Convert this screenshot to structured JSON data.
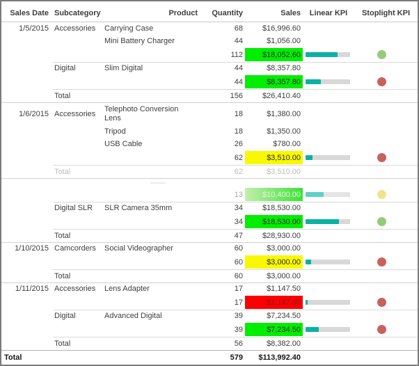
{
  "columns": [
    "Sales Date",
    "Subcategory",
    "Product",
    "Quantity",
    "Sales",
    "Linear KPI",
    "Stoplight KPI"
  ],
  "colors": {
    "highlight_green": "#00ee00",
    "highlight_yellow": "#f8f800",
    "highlight_red": "#fb0000",
    "gradient_left": "#c3eeab",
    "gradient_right": "#3ae437",
    "text_on_green": "#2d2d2d",
    "text_on_yellow": "#2d2d2d",
    "text_on_red": "#8a1b1b",
    "text_on_gradient": "#e9f2e4",
    "bar_fill": "#0bb1a4",
    "bar_fill_faded": "#62cfc4",
    "bar_track": "#d8d8d8",
    "bar_track_faded": "#e4e4e4",
    "dot_green": "#94cc7c",
    "dot_red": "#c8625c",
    "dot_yellow_faded": "#ece58f"
  },
  "rows": [
    {
      "type": "detail",
      "date": "1/5/2015",
      "subcategory": "Accessories",
      "product": "Carrying Case",
      "quantity": "68",
      "sales": "$16,996.60"
    },
    {
      "type": "detail",
      "product": "Mini Battery Charger",
      "quantity": "44",
      "sales": "$1,056.00"
    },
    {
      "type": "subtotal",
      "quantity": "112",
      "sales": "$18,052.60",
      "highlight": "green",
      "bar_pct": 72,
      "dot": "green"
    },
    {
      "type": "detail",
      "sep": "sub",
      "subcategory": "Digital",
      "product": "Slim Digital",
      "quantity": "44",
      "sales": "$8,357.80"
    },
    {
      "type": "subtotal",
      "quantity": "44",
      "sales": "$8,357.80",
      "highlight": "green",
      "bar_pct": 35,
      "dot": "red"
    },
    {
      "type": "total",
      "sep": "sub",
      "label": "Total",
      "quantity": "156",
      "sales": "$26,410.40"
    },
    {
      "type": "detail",
      "sep": "full",
      "wrap": true,
      "date": "1/6/2015",
      "subcategory": "Accessories",
      "product": "Telephoto Conversion Lens",
      "quantity": "18",
      "sales": "$1,380.00"
    },
    {
      "type": "detail",
      "product": "Tripod",
      "quantity": "18",
      "sales": "$1,350.00"
    },
    {
      "type": "detail",
      "product": "USB Cable",
      "quantity": "26",
      "sales": "$780.00"
    },
    {
      "type": "subtotal",
      "quantity": "62",
      "sales": "$3,510.00",
      "highlight": "yellow",
      "bar_pct": 15,
      "dot": "red"
    },
    {
      "type": "total",
      "sep": "sub",
      "faded": true,
      "label": "Total",
      "quantity": "62",
      "sales": "$3,510.00"
    },
    {
      "type": "ghost",
      "sep": "full"
    },
    {
      "type": "subtotal",
      "faded": true,
      "quantity": "13",
      "sales": "$10,400.00",
      "highlight": "gradient",
      "bar_pct": 40,
      "dot": "yellow"
    },
    {
      "type": "detail",
      "sep": "sub",
      "subcategory": "Digital SLR",
      "product": "SLR Camera 35mm",
      "quantity": "34",
      "sales": "$18,530.00"
    },
    {
      "type": "subtotal",
      "quantity": "34",
      "sales": "$18,530.00",
      "highlight": "green",
      "bar_pct": 75,
      "dot": "green"
    },
    {
      "type": "total",
      "sep": "sub",
      "label": "Total",
      "quantity": "47",
      "sales": "$28,930.00"
    },
    {
      "type": "detail",
      "sep": "full",
      "date": "1/10/2015",
      "subcategory": "Camcorders",
      "product": "Social Videographer",
      "quantity": "60",
      "sales": "$3,000.00"
    },
    {
      "type": "subtotal",
      "quantity": "60",
      "sales": "$3,000.00",
      "highlight": "yellow",
      "bar_pct": 12,
      "dot": "red"
    },
    {
      "type": "total",
      "sep": "sub",
      "label": "Total",
      "quantity": "60",
      "sales": "$3,000.00"
    },
    {
      "type": "detail",
      "sep": "full",
      "date": "1/11/2015",
      "subcategory": "Accessories",
      "product": "Lens Adapter",
      "quantity": "17",
      "sales": "$1,147.50"
    },
    {
      "type": "subtotal",
      "quantity": "17",
      "sales": "$1,147.50",
      "highlight": "red",
      "bar_pct": 5,
      "dot": "red"
    },
    {
      "type": "detail",
      "sep": "sub",
      "subcategory": "Digital",
      "product": "Advanced Digital",
      "quantity": "39",
      "sales": "$7,234.50"
    },
    {
      "type": "subtotal",
      "quantity": "39",
      "sales": "$7,234.50",
      "highlight": "green",
      "bar_pct": 30,
      "dot": "red"
    },
    {
      "type": "total",
      "sep": "sub",
      "label": "Total",
      "quantity": "56",
      "sales": "$8,382.00"
    },
    {
      "type": "grand",
      "sep": "dark",
      "label": "Total",
      "quantity": "579",
      "sales": "$113,992.40"
    }
  ]
}
